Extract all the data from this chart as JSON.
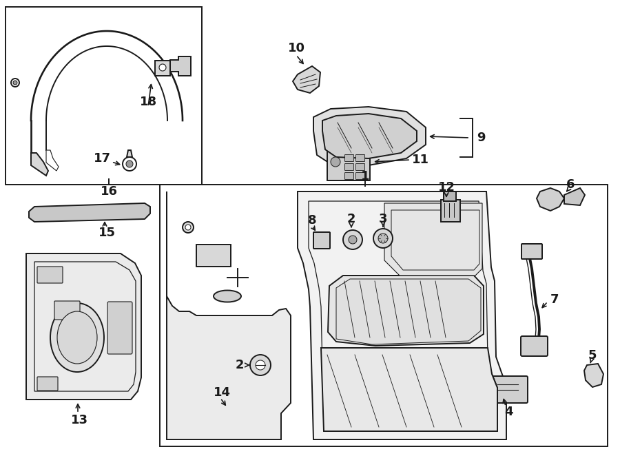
{
  "bg_color": "#ffffff",
  "line_color": "#1a1a1a",
  "lw": 1.4,
  "fig_w": 9.0,
  "fig_h": 6.62,
  "dpi": 100
}
